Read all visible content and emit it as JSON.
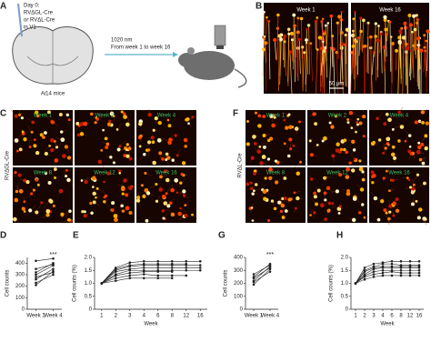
{
  "panel_letters": [
    "A",
    "B",
    "C",
    "D",
    "E",
    "F",
    "G",
    "H"
  ],
  "schematic": {
    "day": "Day 0:",
    "virus1": "RVΔGL-Cre",
    "virus2": "or RVΔL-Cre",
    "site": "in V1",
    "mice": "Ai14 mice",
    "laser": "1020 nm",
    "timeline": "From week 1 to week 16"
  },
  "images": {
    "b_labels": [
      "Week 1",
      "Week 16"
    ],
    "scale": "50 μm",
    "c_side": "RVΔGL-Cre",
    "f_side": "RVΔL-Cre",
    "c_labels": [
      "Week 1",
      "Week 2",
      "Week 4",
      "Week 8",
      "Week 12",
      "Week 16"
    ],
    "f_labels": [
      "Week 1",
      "Week 2",
      "Week 4",
      "Week 8",
      "Week 12",
      "Week 16"
    ]
  },
  "chart_data": [
    {
      "type": "line",
      "ylabel": "Cell counts",
      "categories": [
        "Week 1",
        "Week 4"
      ],
      "annotation": "***",
      "ylim": [
        0,
        450
      ],
      "yticks": [
        0,
        100,
        200,
        300,
        400
      ],
      "series": [
        {
          "color": "#222222",
          "values": [
            210,
            330
          ]
        },
        {
          "color": "#222222",
          "values": [
            230,
            300
          ]
        },
        {
          "color": "#222222",
          "values": [
            260,
            350
          ]
        },
        {
          "color": "#222222",
          "values": [
            280,
            320
          ]
        },
        {
          "color": "#222222",
          "values": [
            300,
            380
          ]
        },
        {
          "color": "#222222",
          "values": [
            320,
            400
          ]
        },
        {
          "color": "#222222",
          "values": [
            350,
            390
          ]
        },
        {
          "color": "#222222",
          "values": [
            420,
            440
          ]
        }
      ]
    },
    {
      "type": "line",
      "ylabel": "Cell counts (%)",
      "xlabel": "Week",
      "categories": [
        "1",
        "2",
        "3",
        "4",
        "6",
        "8",
        "12",
        "16"
      ],
      "ylim": [
        0,
        2.0
      ],
      "yticks": [
        0,
        0.5,
        {
          "value": 1,
          "label": "1.0"
        },
        1.5,
        {
          "value": 2,
          "label": "2.0"
        }
      ],
      "series": [
        {
          "color": "#222222",
          "values": [
            1,
            1.6,
            1.8,
            1.85,
            1.85,
            1.85,
            1.85,
            1.85
          ]
        },
        {
          "color": "#222222",
          "values": [
            1,
            1.55,
            1.7,
            1.75,
            1.75,
            1.75,
            1.75,
            null
          ]
        },
        {
          "color": "#222222",
          "values": [
            1,
            1.5,
            1.65,
            1.7,
            1.7,
            1.7,
            1.7,
            1.7
          ]
        },
        {
          "color": "#222222",
          "values": [
            1,
            1.45,
            1.55,
            1.6,
            1.6,
            1.6,
            1.6,
            1.6
          ]
        },
        {
          "color": "#222222",
          "values": [
            1,
            1.35,
            1.5,
            1.5,
            1.5,
            1.5,
            1.5,
            1.5
          ]
        },
        {
          "color": "#222222",
          "values": [
            1,
            1.3,
            1.4,
            1.45,
            1.45,
            1.45,
            null,
            null
          ]
        },
        {
          "color": "#222222",
          "values": [
            1,
            1.2,
            1.3,
            1.35,
            1.3,
            1.3,
            1.3,
            null
          ]
        },
        {
          "color": "#222222",
          "values": [
            1,
            1.1,
            1.2,
            1.2,
            1.2,
            1.2,
            null,
            null
          ]
        }
      ]
    },
    {
      "type": "line",
      "ylabel": "Cell counts",
      "categories": [
        "Week 1",
        "Week 4"
      ],
      "annotation": "***",
      "ylim": [
        0,
        400
      ],
      "yticks": [
        0,
        100,
        200,
        300,
        400
      ],
      "series": [
        {
          "color": "#222222",
          "values": [
            190,
            310
          ]
        },
        {
          "color": "#222222",
          "values": [
            210,
            290
          ]
        },
        {
          "color": "#222222",
          "values": [
            220,
            330
          ]
        },
        {
          "color": "#222222",
          "values": [
            240,
            320
          ]
        },
        {
          "color": "#222222",
          "values": [
            250,
            350
          ]
        },
        {
          "color": "#222222",
          "values": [
            270,
            340
          ]
        }
      ]
    },
    {
      "type": "line",
      "ylabel": "Cell counts (%)",
      "xlabel": "Week",
      "categories": [
        "1",
        "2",
        "3",
        "4",
        "6",
        "8",
        "12",
        "16"
      ],
      "ylim": [
        0,
        2.0
      ],
      "yticks": [
        0,
        0.5,
        {
          "value": 1,
          "label": "1.0"
        },
        1.5,
        {
          "value": 2,
          "label": "2.0"
        }
      ],
      "series": [
        {
          "color": "#222222",
          "values": [
            1,
            1.6,
            1.75,
            1.8,
            1.85,
            1.85,
            1.85,
            1.85
          ]
        },
        {
          "color": "#222222",
          "values": [
            1,
            1.5,
            1.65,
            1.75,
            1.75,
            1.7,
            1.7,
            1.7
          ]
        },
        {
          "color": "#222222",
          "values": [
            1,
            1.45,
            1.6,
            1.65,
            1.65,
            1.65,
            1.65,
            1.65
          ]
        },
        {
          "color": "#222222",
          "values": [
            1,
            1.35,
            1.55,
            1.6,
            1.6,
            1.6,
            1.6,
            1.6
          ]
        },
        {
          "color": "#222222",
          "values": [
            1,
            1.3,
            1.45,
            1.5,
            1.5,
            1.5,
            1.5,
            1.5
          ]
        },
        {
          "color": "#222222",
          "values": [
            1,
            1.25,
            1.35,
            1.4,
            1.45,
            1.4,
            1.4,
            1.4
          ]
        },
        {
          "color": "#222222",
          "values": [
            1,
            1.15,
            1.25,
            1.3,
            1.3,
            1.3,
            1.3,
            1.3
          ]
        }
      ]
    }
  ]
}
